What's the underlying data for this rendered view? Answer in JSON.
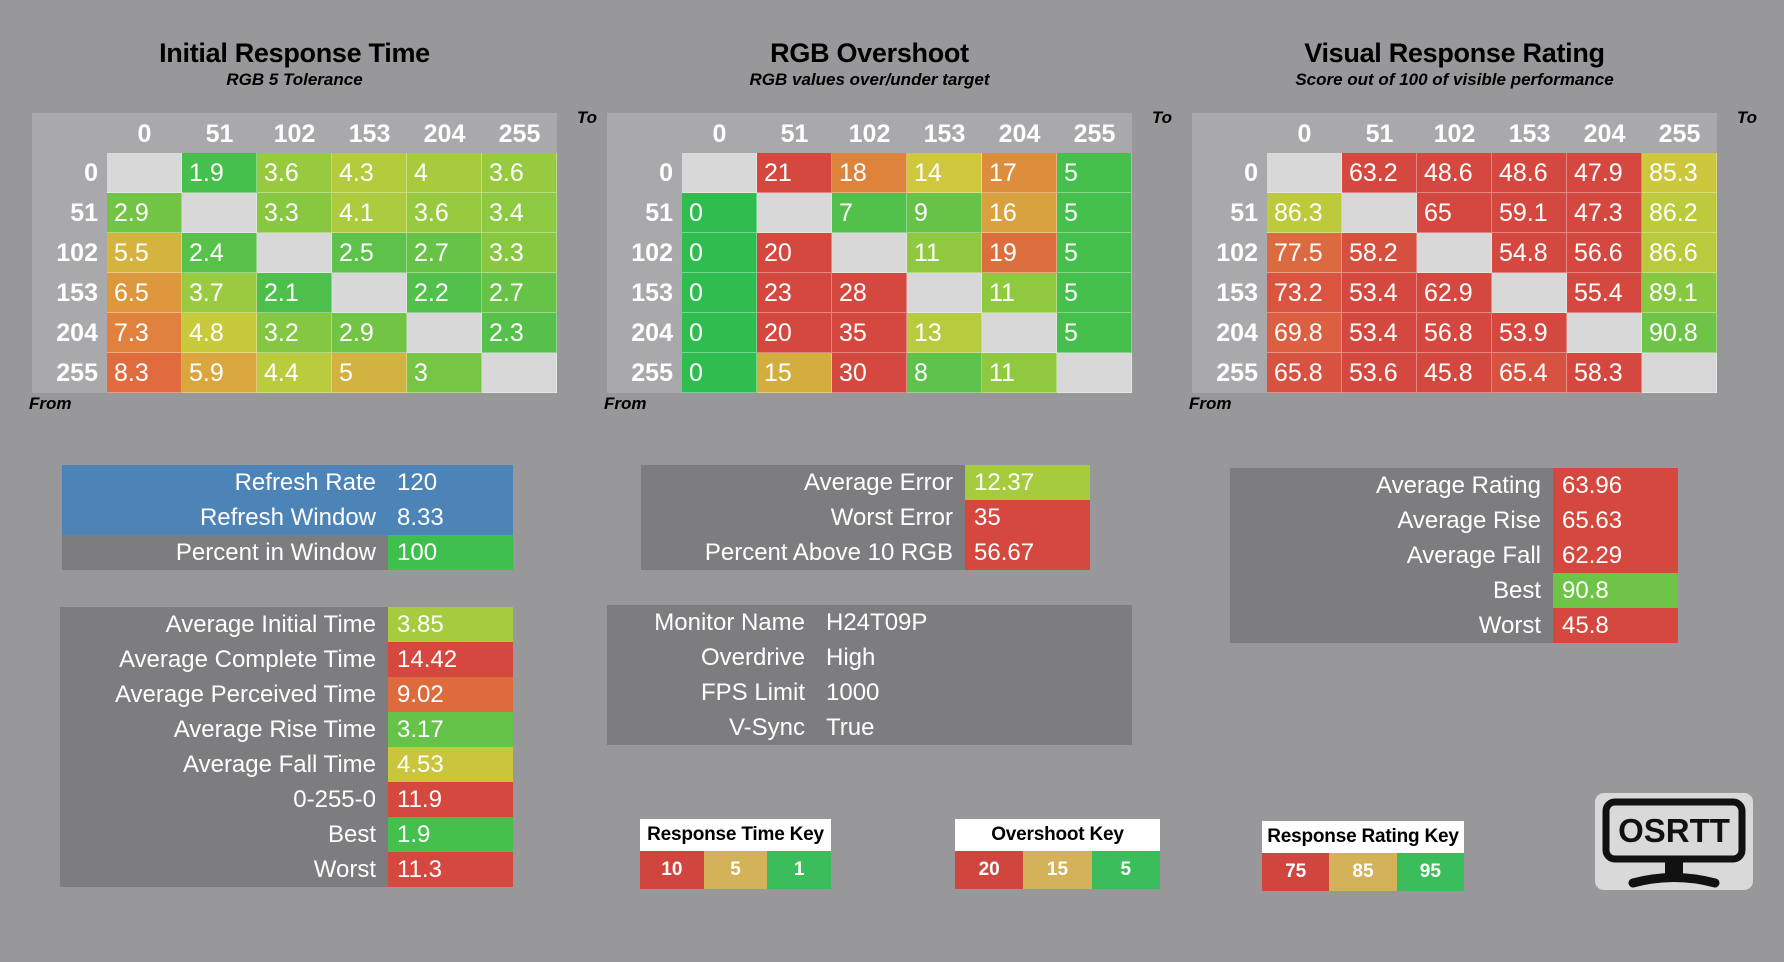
{
  "colors": {
    "background": "#98989a",
    "table_bg": "#a9a9ab",
    "empty_cell": "#d8d8d8",
    "panel_gray": "#7d7d7f",
    "panel_blue": "#4d84b8",
    "key_red": "#d0463f",
    "key_tan": "#d3b259",
    "key_green": "#3cbd5c"
  },
  "chart_data": [
    {
      "type": "heatmap",
      "title": "Initial Response Time",
      "subtitle": "RGB 5 Tolerance",
      "axis_to_label": "To",
      "axis_from_label": "From",
      "to_values": [
        "0",
        "51",
        "102",
        "153",
        "204",
        "255"
      ],
      "rows": [
        {
          "from": "0",
          "cells": [
            {
              "v": "",
              "bg": "#d8d8d8"
            },
            {
              "v": "1.9",
              "bg": "#46c04c"
            },
            {
              "v": "3.6",
              "bg": "#97ca3f"
            },
            {
              "v": "4.3",
              "bg": "#b3cb3d"
            },
            {
              "v": "4",
              "bg": "#a8cb3e"
            },
            {
              "v": "3.6",
              "bg": "#97ca3f"
            }
          ]
        },
        {
          "from": "51",
          "cells": [
            {
              "v": "2.9",
              "bg": "#72c445"
            },
            {
              "v": "",
              "bg": "#d8d8d8"
            },
            {
              "v": "3.3",
              "bg": "#88c841"
            },
            {
              "v": "4.1",
              "bg": "#adcb3e"
            },
            {
              "v": "3.6",
              "bg": "#97ca3f"
            },
            {
              "v": "3.4",
              "bg": "#8dc941"
            }
          ]
        },
        {
          "from": "102",
          "cells": [
            {
              "v": "5.5",
              "bg": "#d4b33f"
            },
            {
              "v": "2.4",
              "bg": "#58c14a"
            },
            {
              "v": "",
              "bg": "#d8d8d8"
            },
            {
              "v": "2.5",
              "bg": "#5dc249"
            },
            {
              "v": "2.7",
              "bg": "#67c347"
            },
            {
              "v": "3.3",
              "bg": "#88c841"
            }
          ]
        },
        {
          "from": "153",
          "cells": [
            {
              "v": "6.5",
              "bg": "#dd973d"
            },
            {
              "v": "3.7",
              "bg": "#9aca3f"
            },
            {
              "v": "2.1",
              "bg": "#4dc04c"
            },
            {
              "v": "",
              "bg": "#d8d8d8"
            },
            {
              "v": "2.2",
              "bg": "#51c14b"
            },
            {
              "v": "2.7",
              "bg": "#67c347"
            }
          ]
        },
        {
          "from": "204",
          "cells": [
            {
              "v": "7.3",
              "bg": "#e0823d"
            },
            {
              "v": "4.8",
              "bg": "#c9c93c"
            },
            {
              "v": "3.2",
              "bg": "#84c742"
            },
            {
              "v": "2.9",
              "bg": "#72c445"
            },
            {
              "v": "",
              "bg": "#d8d8d8"
            },
            {
              "v": "2.3",
              "bg": "#55c14a"
            }
          ]
        },
        {
          "from": "255",
          "cells": [
            {
              "v": "8.3",
              "bg": "#df6b3f"
            },
            {
              "v": "5.9",
              "bg": "#d9a73e"
            },
            {
              "v": "4.4",
              "bg": "#bacb3d"
            },
            {
              "v": "5",
              "bg": "#d2b240"
            },
            {
              "v": "3",
              "bg": "#77c544"
            },
            {
              "v": "",
              "bg": "#d8d8d8"
            }
          ]
        }
      ]
    },
    {
      "type": "heatmap",
      "title": "RGB Overshoot",
      "subtitle": "RGB values over/under target",
      "axis_to_label": "To",
      "axis_from_label": "From",
      "to_values": [
        "0",
        "51",
        "102",
        "153",
        "204",
        "255"
      ],
      "rows": [
        {
          "from": "0",
          "cells": [
            {
              "v": "",
              "bg": "#d8d8d8"
            },
            {
              "v": "21",
              "bg": "#d5483f"
            },
            {
              "v": "18",
              "bg": "#dd833c"
            },
            {
              "v": "14",
              "bg": "#cfc83d"
            },
            {
              "v": "17",
              "bg": "#dc8e3c"
            },
            {
              "v": "5",
              "bg": "#46c04c"
            }
          ]
        },
        {
          "from": "51",
          "cells": [
            {
              "v": "0",
              "bg": "#2fbd4f"
            },
            {
              "v": "",
              "bg": "#d8d8d8"
            },
            {
              "v": "7",
              "bg": "#52c14b"
            },
            {
              "v": "9",
              "bg": "#67c347"
            },
            {
              "v": "16",
              "bg": "#d8a23e"
            },
            {
              "v": "5",
              "bg": "#46c04c"
            }
          ]
        },
        {
          "from": "102",
          "cells": [
            {
              "v": "0",
              "bg": "#2fbd4f"
            },
            {
              "v": "20",
              "bg": "#d5483f"
            },
            {
              "v": "",
              "bg": "#d8d8d8"
            },
            {
              "v": "11",
              "bg": "#90c940"
            },
            {
              "v": "19",
              "bg": "#dc6f3e"
            },
            {
              "v": "5",
              "bg": "#46c04c"
            }
          ]
        },
        {
          "from": "153",
          "cells": [
            {
              "v": "0",
              "bg": "#2fbd4f"
            },
            {
              "v": "23",
              "bg": "#d5483f"
            },
            {
              "v": "28",
              "bg": "#d5483f"
            },
            {
              "v": "",
              "bg": "#d8d8d8"
            },
            {
              "v": "11",
              "bg": "#90c940"
            },
            {
              "v": "5",
              "bg": "#46c04c"
            }
          ]
        },
        {
          "from": "204",
          "cells": [
            {
              "v": "0",
              "bg": "#2fbd4f"
            },
            {
              "v": "20",
              "bg": "#d5483f"
            },
            {
              "v": "35",
              "bg": "#d5483f"
            },
            {
              "v": "13",
              "bg": "#b6cb3d"
            },
            {
              "v": "",
              "bg": "#d8d8d8"
            },
            {
              "v": "5",
              "bg": "#46c04c"
            }
          ]
        },
        {
          "from": "255",
          "cells": [
            {
              "v": "0",
              "bg": "#2fbd4f"
            },
            {
              "v": "15",
              "bg": "#d3ae3f"
            },
            {
              "v": "30",
              "bg": "#d5483f"
            },
            {
              "v": "8",
              "bg": "#5dc249"
            },
            {
              "v": "11",
              "bg": "#90c940"
            },
            {
              "v": "",
              "bg": "#d8d8d8"
            }
          ]
        }
      ]
    },
    {
      "type": "heatmap",
      "title": "Visual Response Rating",
      "subtitle": "Score out of 100 of visible performance",
      "axis_to_label": "To",
      "axis_from_label": "From",
      "to_values": [
        "0",
        "51",
        "102",
        "153",
        "204",
        "255"
      ],
      "rows": [
        {
          "from": "0",
          "cells": [
            {
              "v": "",
              "bg": "#d8d8d8"
            },
            {
              "v": "63.2",
              "bg": "#d5483f"
            },
            {
              "v": "48.6",
              "bg": "#d5483f"
            },
            {
              "v": "48.6",
              "bg": "#d5483f"
            },
            {
              "v": "47.9",
              "bg": "#d5483f"
            },
            {
              "v": "85.3",
              "bg": "#cdc73d"
            }
          ]
        },
        {
          "from": "51",
          "cells": [
            {
              "v": "86.3",
              "bg": "#bdca3c"
            },
            {
              "v": "",
              "bg": "#d8d8d8"
            },
            {
              "v": "65",
              "bg": "#d5483f"
            },
            {
              "v": "59.1",
              "bg": "#d5483f"
            },
            {
              "v": "47.3",
              "bg": "#d5483f"
            },
            {
              "v": "86.2",
              "bg": "#bdca3c"
            }
          ]
        },
        {
          "from": "102",
          "cells": [
            {
              "v": "77.5",
              "bg": "#dc6a40"
            },
            {
              "v": "58.2",
              "bg": "#d6503f"
            },
            {
              "v": "",
              "bg": "#d8d8d8"
            },
            {
              "v": "54.8",
              "bg": "#d5483f"
            },
            {
              "v": "56.6",
              "bg": "#d5483f"
            },
            {
              "v": "86.6",
              "bg": "#b9ca3d"
            }
          ]
        },
        {
          "from": "153",
          "cells": [
            {
              "v": "73.2",
              "bg": "#d9553f"
            },
            {
              "v": "53.4",
              "bg": "#d5483f"
            },
            {
              "v": "62.9",
              "bg": "#d5483f"
            },
            {
              "v": "",
              "bg": "#d8d8d8"
            },
            {
              "v": "55.4",
              "bg": "#d5483f"
            },
            {
              "v": "89.1",
              "bg": "#87c842"
            }
          ]
        },
        {
          "from": "204",
          "cells": [
            {
              "v": "69.8",
              "bg": "#db5f40"
            },
            {
              "v": "53.4",
              "bg": "#d5483f"
            },
            {
              "v": "56.8",
              "bg": "#d5483f"
            },
            {
              "v": "53.9",
              "bg": "#d5483f"
            },
            {
              "v": "",
              "bg": "#d8d8d8"
            },
            {
              "v": "90.8",
              "bg": "#6ec446"
            }
          ]
        },
        {
          "from": "255",
          "cells": [
            {
              "v": "65.8",
              "bg": "#d75240"
            },
            {
              "v": "53.6",
              "bg": "#d5483f"
            },
            {
              "v": "45.8",
              "bg": "#d5483f"
            },
            {
              "v": "65.4",
              "bg": "#d75240"
            },
            {
              "v": "58.3",
              "bg": "#d5483f"
            },
            {
              "v": "",
              "bg": "#d8d8d8"
            }
          ]
        }
      ]
    }
  ],
  "summaries": {
    "left_top": {
      "rows": [
        {
          "label": "Refresh Rate",
          "value": "120",
          "row_bg": "#4d84b8"
        },
        {
          "label": "Refresh Window",
          "value": "8.33",
          "row_bg": "#4d84b8"
        },
        {
          "label": "Percent in Window",
          "value": "100",
          "row_bg": "#7d7d7f",
          "value_bg": "#3fbf4e"
        }
      ]
    },
    "left_bottom": {
      "rows": [
        {
          "label": "Average Initial Time",
          "value": "3.85",
          "row_bg": "#7d7d7f",
          "value_bg": "#a6cb3e"
        },
        {
          "label": "Average Complete Time",
          "value": "14.42",
          "row_bg": "#7d7d7f",
          "value_bg": "#d5483f"
        },
        {
          "label": "Average Perceived Time",
          "value": "9.02",
          "row_bg": "#7d7d7f",
          "value_bg": "#dd6b3d"
        },
        {
          "label": "Average Rise Time",
          "value": "3.17",
          "row_bg": "#7d7d7f",
          "value_bg": "#64c348"
        },
        {
          "label": "Average Fall Time",
          "value": "4.53",
          "row_bg": "#7d7d7f",
          "value_bg": "#c9c63d"
        },
        {
          "label": "0-255-0",
          "value": "11.9",
          "row_bg": "#7d7d7f",
          "value_bg": "#d5483f"
        },
        {
          "label": "Best",
          "value": "1.9",
          "row_bg": "#7d7d7f",
          "value_bg": "#46c04c"
        },
        {
          "label": "Worst",
          "value": "11.3",
          "row_bg": "#7d7d7f",
          "value_bg": "#d5483f"
        }
      ]
    },
    "mid_top": {
      "rows": [
        {
          "label": "Average Error",
          "value": "12.37",
          "row_bg": "#7d7d7f",
          "value_bg": "#a6cb3e"
        },
        {
          "label": "Worst Error",
          "value": "35",
          "row_bg": "#7d7d7f",
          "value_bg": "#d5483f"
        },
        {
          "label": "Percent Above 10 RGB",
          "value": "56.67",
          "row_bg": "#7d7d7f",
          "value_bg": "#d5483f"
        }
      ]
    },
    "monitor": {
      "rows": [
        {
          "label": "Monitor Name",
          "value": "H24T09P",
          "row_bg": "#7d7d7f"
        },
        {
          "label": "Overdrive",
          "value": "High",
          "row_bg": "#7d7d7f"
        },
        {
          "label": "FPS Limit",
          "value": "1000",
          "row_bg": "#7d7d7f"
        },
        {
          "label": "V-Sync",
          "value": "True",
          "row_bg": "#7d7d7f"
        }
      ]
    },
    "right": {
      "rows": [
        {
          "label": "Average Rating",
          "value": "63.96",
          "row_bg": "#7d7d7f",
          "value_bg": "#d5483f"
        },
        {
          "label": "Average Rise",
          "value": "65.63",
          "row_bg": "#7d7d7f",
          "value_bg": "#d5483f"
        },
        {
          "label": "Average Fall",
          "value": "62.29",
          "row_bg": "#7d7d7f",
          "value_bg": "#d5483f"
        },
        {
          "label": "Best",
          "value": "90.8",
          "row_bg": "#7d7d7f",
          "value_bg": "#6ec446"
        },
        {
          "label": "Worst",
          "value": "45.8",
          "row_bg": "#7d7d7f",
          "value_bg": "#d5483f"
        }
      ]
    }
  },
  "keys": [
    {
      "title": "Response Time Key",
      "cells": [
        {
          "v": "10",
          "bg": "#d0463f"
        },
        {
          "v": "5",
          "bg": "#d3b259"
        },
        {
          "v": "1",
          "bg": "#3cbd5c"
        }
      ]
    },
    {
      "title": "Overshoot Key",
      "cells": [
        {
          "v": "20",
          "bg": "#d0463f"
        },
        {
          "v": "15",
          "bg": "#d3b259"
        },
        {
          "v": "5",
          "bg": "#3cbd5c"
        }
      ]
    },
    {
      "title": "Response Rating Key",
      "cells": [
        {
          "v": "75",
          "bg": "#d0463f"
        },
        {
          "v": "85",
          "bg": "#d3b259"
        },
        {
          "v": "95",
          "bg": "#3cbd5c"
        }
      ]
    }
  ],
  "logo": {
    "text": "OSRTT"
  }
}
